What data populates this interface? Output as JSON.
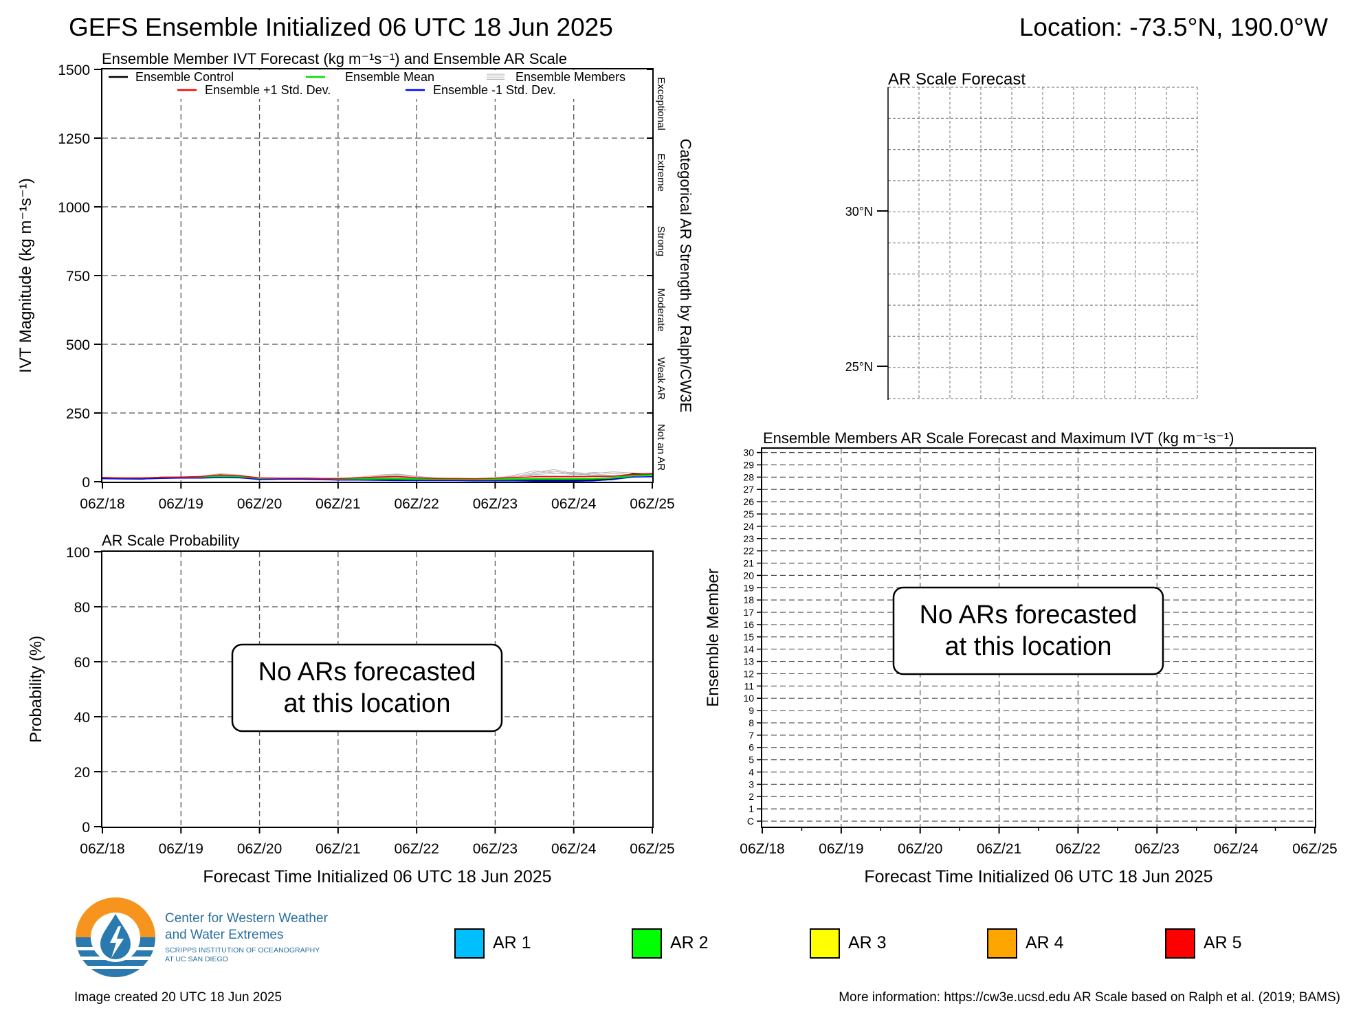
{
  "header": {
    "title": "GEFS Ensemble Initialized 06 UTC 18 Jun 2025",
    "location": "Location: -73.5°N, 190.0°W"
  },
  "time_ticks": [
    "06Z/18",
    "06Z/19",
    "06Z/20",
    "06Z/21",
    "06Z/22",
    "06Z/23",
    "06Z/24",
    "06Z/25"
  ],
  "footer": {
    "created": "Image created 20 UTC 18 Jun 2025",
    "info": "More information: https://cw3e.ucsd.edu AR Scale based on Ralph et al. (2019; BAMS)"
  },
  "logo": {
    "line1": "Center for Western Weather",
    "line2": "and Water Extremes",
    "line3": "SCRIPPS INSTITUTION OF OCEANOGRAPHY",
    "line4": "AT UC SAN DIEGO",
    "colors": {
      "sun": "#f7941d",
      "water": "#2a7ab0",
      "text": "#2a6f9e"
    }
  },
  "legend_ar": [
    {
      "label": "AR 1",
      "color": "#00bfff"
    },
    {
      "label": "AR 2",
      "color": "#00ff00"
    },
    {
      "label": "AR 3",
      "color": "#ffff00"
    },
    {
      "label": "AR 4",
      "color": "#ffa500"
    },
    {
      "label": "AR 5",
      "color": "#ff0000"
    }
  ],
  "chart_data": [
    {
      "id": "ivt",
      "type": "line",
      "title": "Ensemble Member IVT Forecast (kg m⁻¹s⁻¹) and Ensemble AR Scale",
      "ylabel": "IVT Magnitude (kg m⁻¹s⁻¹)",
      "right_label": "Categorical AR Strength by Ralph/CW3E",
      "ylim": [
        0,
        1500
      ],
      "yticks": [
        0,
        250,
        500,
        750,
        1000,
        1250,
        1500
      ],
      "xticks": [
        "06Z/18",
        "06Z/19",
        "06Z/20",
        "06Z/21",
        "06Z/22",
        "06Z/23",
        "06Z/24",
        "06Z/25"
      ],
      "grid": true,
      "categories_right": [
        "Not an AR",
        "Weak AR",
        "Moderate",
        "Strong",
        "Extreme",
        "Exceptional"
      ],
      "legend": [
        {
          "label": "Ensemble Control",
          "color": "#000000"
        },
        {
          "label": "Ensemble Mean",
          "color": "#00e000"
        },
        {
          "label": "Ensemble Members",
          "color": "#b0b0b0"
        },
        {
          "label": "Ensemble +1 Std. Dev.",
          "color": "#ff0000"
        },
        {
          "label": "Ensemble -1 Std. Dev.",
          "color": "#0000ff"
        }
      ],
      "x_days": [
        0,
        0.25,
        0.5,
        0.75,
        1,
        1.25,
        1.5,
        1.75,
        2,
        2.25,
        2.5,
        2.75,
        3,
        3.25,
        3.5,
        3.75,
        4,
        4.25,
        4.5,
        4.75,
        5,
        5.25,
        5.5,
        5.75,
        6,
        6.25,
        6.5,
        6.75,
        7
      ],
      "series": [
        {
          "name": "Ensemble Control",
          "color": "#000000",
          "width": 2.5,
          "values": [
            14,
            12,
            11,
            15,
            15,
            15,
            22,
            18,
            9,
            11,
            12,
            11,
            8,
            8,
            7,
            7,
            6,
            6,
            6,
            5,
            6,
            6,
            5,
            6,
            5,
            6,
            9,
            28,
            27
          ]
        },
        {
          "name": "Ensemble Mean",
          "color": "#00e000",
          "width": 2.5,
          "values": [
            13,
            12,
            12,
            14,
            15,
            16,
            20,
            18,
            11,
            11,
            11,
            10,
            9,
            10,
            11,
            11,
            9,
            8,
            8,
            7,
            8,
            9,
            10,
            10,
            10,
            11,
            14,
            22,
            24
          ]
        },
        {
          "name": "Ensemble +1 Std. Dev.",
          "color": "#ff0000",
          "width": 1.5,
          "values": [
            15,
            14,
            14,
            16,
            17,
            19,
            25,
            22,
            14,
            13,
            13,
            12,
            12,
            14,
            17,
            19,
            14,
            12,
            12,
            11,
            13,
            15,
            18,
            18,
            18,
            19,
            20,
            27,
            30
          ]
        },
        {
          "name": "Ensemble -1 Std. Dev.",
          "color": "#0000ff",
          "width": 1.5,
          "values": [
            11,
            10,
            10,
            12,
            13,
            13,
            15,
            14,
            8,
            9,
            9,
            8,
            6,
            6,
            5,
            4,
            4,
            4,
            4,
            3,
            3,
            3,
            2,
            2,
            2,
            3,
            8,
            17,
            18
          ]
        }
      ],
      "members": [
        [
          14,
          13,
          12,
          16,
          17,
          19,
          30,
          24,
          12,
          12,
          12,
          11,
          10,
          14,
          20,
          26,
          18,
          14,
          12,
          10,
          12,
          18,
          34,
          44,
          30,
          24,
          20,
          28,
          30
        ],
        [
          12,
          11,
          12,
          13,
          14,
          16,
          24,
          20,
          10,
          11,
          10,
          9,
          9,
          12,
          18,
          22,
          16,
          12,
          10,
          9,
          10,
          16,
          26,
          30,
          34,
          28,
          22,
          26,
          27
        ],
        [
          13,
          12,
          13,
          14,
          15,
          17,
          18,
          16,
          11,
          12,
          13,
          12,
          11,
          16,
          24,
          28,
          20,
          13,
          11,
          10,
          14,
          20,
          22,
          24,
          20,
          30,
          36,
          32,
          28
        ],
        [
          15,
          14,
          13,
          15,
          16,
          18,
          26,
          22,
          12,
          10,
          11,
          10,
          8,
          10,
          14,
          16,
          12,
          10,
          9,
          8,
          10,
          14,
          30,
          38,
          28,
          22,
          18,
          24,
          26
        ],
        [
          12,
          12,
          11,
          13,
          14,
          15,
          20,
          18,
          9,
          10,
          12,
          11,
          9,
          11,
          16,
          20,
          14,
          11,
          10,
          9,
          12,
          24,
          40,
          32,
          26,
          34,
          30,
          26,
          25
        ]
      ]
    },
    {
      "id": "prob",
      "type": "line",
      "title": "AR Scale Probability",
      "ylabel": "Probability (%)",
      "xlabel": "Forecast Time Initialized 06 UTC 18 Jun 2025",
      "ylim": [
        0,
        100
      ],
      "yticks": [
        0,
        20,
        40,
        60,
        80,
        100
      ],
      "xticks": [
        "06Z/18",
        "06Z/19",
        "06Z/20",
        "06Z/21",
        "06Z/22",
        "06Z/23",
        "06Z/24",
        "06Z/25"
      ],
      "grid": true,
      "series": [],
      "message": [
        "No ARs forecasted",
        "at this location"
      ]
    },
    {
      "id": "map",
      "type": "map",
      "title": "AR Scale Forecast",
      "lat_labels": [
        "30°N",
        "25°N"
      ]
    },
    {
      "id": "members",
      "type": "heatmap",
      "title": "Ensemble Members AR Scale Forecast and Maximum IVT (kg m⁻¹s⁻¹)",
      "ylabel": "Ensemble Member",
      "xlabel": "Forecast Time Initialized 06 UTC 18 Jun 2025",
      "yticks": [
        "C",
        "1",
        "2",
        "3",
        "4",
        "5",
        "6",
        "7",
        "8",
        "9",
        "10",
        "11",
        "12",
        "13",
        "14",
        "15",
        "16",
        "17",
        "18",
        "19",
        "20",
        "21",
        "22",
        "23",
        "24",
        "25",
        "26",
        "27",
        "28",
        "29",
        "30"
      ],
      "xticks": [
        "06Z/18",
        "06Z/19",
        "06Z/20",
        "06Z/21",
        "06Z/22",
        "06Z/23",
        "06Z/24",
        "06Z/25"
      ],
      "grid": true,
      "values": [],
      "message": [
        "No ARs forecasted",
        "at this location"
      ]
    }
  ]
}
